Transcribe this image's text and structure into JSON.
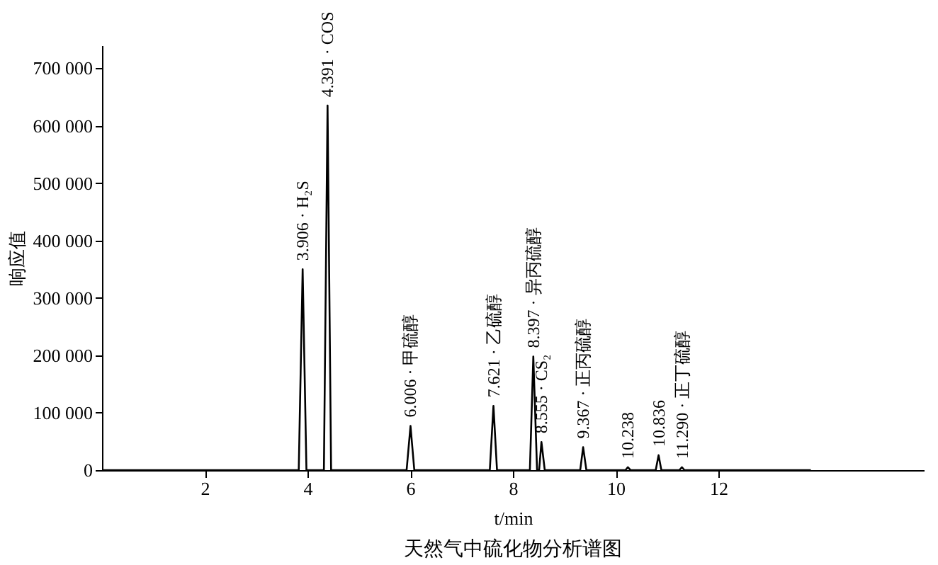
{
  "chart_data": {
    "type": "line",
    "title": "天然气中硫化物分析谱图",
    "xlabel": "t/min",
    "ylabel": "响应值",
    "series": [
      {
        "color": "#000000",
        "x": [
          0,
          3.83,
          3.906,
          3.98,
          4.32,
          4.391,
          4.46,
          5.93,
          6.006,
          6.08,
          7.55,
          7.621,
          7.69,
          8.33,
          8.397,
          8.47,
          8.51,
          8.555,
          8.62,
          9.31,
          9.367,
          9.43,
          10.19,
          10.238,
          10.29,
          10.78,
          10.836,
          10.89,
          11.24,
          11.29,
          11.34,
          13.8
        ],
        "values": [
          0,
          0,
          350000,
          0,
          0,
          635000,
          0,
          0,
          77000,
          0,
          0,
          112000,
          0,
          0,
          198000,
          0,
          0,
          49000,
          0,
          0,
          40000,
          0,
          0,
          5000,
          0,
          0,
          26000,
          0,
          0,
          5000,
          0,
          0
        ]
      }
    ],
    "xlim": [
      0,
      16
    ],
    "xticks": [
      2,
      4,
      6,
      8,
      10,
      12
    ],
    "ylim": [
      0,
      740000
    ],
    "yticks": [
      0,
      {
        "value": 100000,
        "label": "100 000"
      },
      {
        "value": 200000,
        "label": "200 000"
      },
      {
        "value": 300000,
        "label": "300 000"
      },
      {
        "value": 400000,
        "label": "400 000"
      },
      {
        "value": 500000,
        "label": "500 000"
      },
      {
        "value": 600000,
        "label": "600 000"
      },
      {
        "value": 700000,
        "label": "700 000"
      }
    ],
    "grid": false,
    "marker": "none",
    "line_style": "solid",
    "annotations": [
      {
        "text": "3.906 · H₂S",
        "x": 3.906,
        "y": 350000
      },
      {
        "text": "4.391 · COS",
        "x": 4.391,
        "y": 635000
      },
      {
        "text": "6.006 · 甲硫醇",
        "x": 6.006,
        "y": 77000
      },
      {
        "text": "7.621 · 乙硫醇",
        "x": 7.621,
        "y": 112000
      },
      {
        "text": "8.397 · 异丙硫醇",
        "x": 8.397,
        "y": 198000
      },
      {
        "text": "8.555 · CS₂",
        "x": 8.555,
        "y": 49000
      },
      {
        "text": "9.367 · 正丙硫醇",
        "x": 9.367,
        "y": 40000
      },
      {
        "text": "10.238",
        "x": 10.238,
        "y": 5000
      },
      {
        "text": "10.836",
        "x": 10.836,
        "y": 26000
      },
      {
        "text": "11.290 · 正丁硫醇",
        "x": 11.29,
        "y": 5000
      }
    ]
  }
}
